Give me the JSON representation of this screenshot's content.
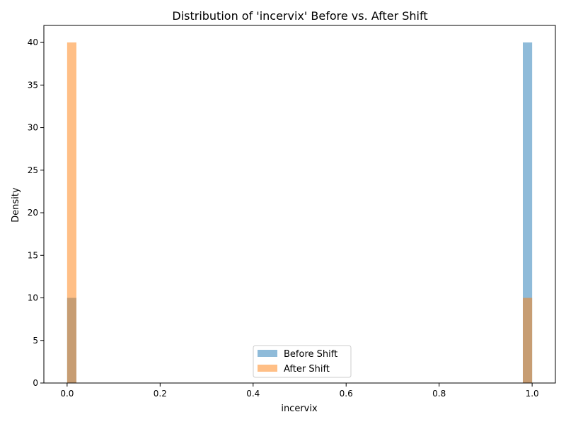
{
  "chart_data": {
    "type": "bar",
    "subtype": "overlapping-histogram",
    "title": "Distribution of 'incervix' Before vs. After Shift",
    "xlabel": "incervix",
    "ylabel": "Density",
    "xlim": [
      -0.05,
      1.05
    ],
    "ylim": [
      0,
      42
    ],
    "xticks": [
      0.0,
      0.2,
      0.4,
      0.6,
      0.8,
      1.0
    ],
    "xtick_labels": [
      "0.0",
      "0.2",
      "0.4",
      "0.6",
      "0.8",
      "1.0"
    ],
    "yticks": [
      0,
      5,
      10,
      15,
      20,
      25,
      30,
      35,
      40
    ],
    "ytick_labels": [
      "0",
      "5",
      "10",
      "15",
      "20",
      "25",
      "30",
      "35",
      "40"
    ],
    "bin_width": 0.02,
    "grid": false,
    "legend_position": "bottom-center",
    "series": [
      {
        "name": "Before Shift",
        "color": "#1f77b4",
        "alpha": 0.5,
        "bins": [
          {
            "x0": 0.0,
            "x1": 0.02,
            "value": 10
          },
          {
            "x0": 0.98,
            "x1": 1.0,
            "value": 40
          }
        ]
      },
      {
        "name": "After Shift",
        "color": "#ff7f0e",
        "alpha": 0.5,
        "bins": [
          {
            "x0": 0.0,
            "x1": 0.02,
            "value": 40
          },
          {
            "x0": 0.98,
            "x1": 1.0,
            "value": 10
          }
        ]
      }
    ]
  }
}
